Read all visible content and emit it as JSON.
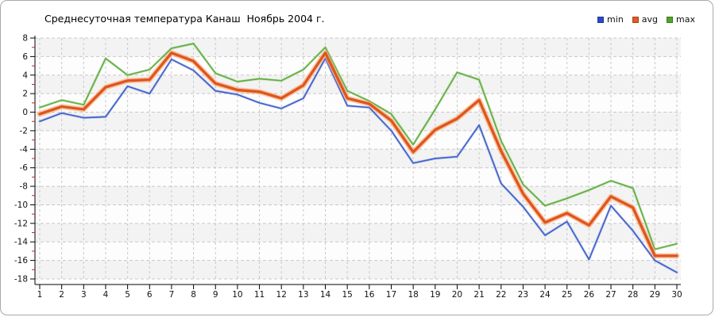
{
  "chart_data": {
    "type": "line",
    "title": "Среднесуточная температура Канаш  Ноябрь 2004 г.",
    "xlabel": "",
    "ylabel": "",
    "x": [
      1,
      2,
      3,
      4,
      5,
      6,
      7,
      8,
      9,
      10,
      11,
      12,
      13,
      14,
      15,
      16,
      17,
      18,
      19,
      20,
      21,
      22,
      23,
      24,
      25,
      26,
      27,
      28,
      29,
      30
    ],
    "x_tick_labels": [
      "1",
      "2",
      "3",
      "4",
      "5",
      "6",
      "7",
      "8",
      "9",
      "10",
      "11",
      "12",
      "13",
      "14",
      "15",
      "16",
      "17",
      "18",
      "19",
      "20",
      "21",
      "22",
      "23",
      "24",
      "25",
      "26",
      "27",
      "28",
      "29",
      "30"
    ],
    "ylim": [
      -18,
      8
    ],
    "y_tick_step": 2,
    "y_minor_tick_step": 1,
    "grid": "dashed",
    "background_bands": true,
    "legend_position": "top-right",
    "series": [
      {
        "name": "min",
        "color": "#2b49c4",
        "line_color": "#3f60ca",
        "halo_color": "rgba(130,155,225,0.35)",
        "line_width": 1.7,
        "values": [
          -1.0,
          -0.1,
          -0.6,
          -0.5,
          2.8,
          2.0,
          5.7,
          4.5,
          2.3,
          1.9,
          1.0,
          0.4,
          1.5,
          5.8,
          0.7,
          0.5,
          -2.0,
          -5.5,
          -5.0,
          -4.8,
          -1.4,
          -7.7,
          -10.2,
          -13.3,
          -11.8,
          -15.9,
          -10.1,
          -12.8,
          -16.0,
          -17.3
        ]
      },
      {
        "name": "avg",
        "color": "#e05a28",
        "line_color": "#e0551e",
        "halo_color": "rgba(245,166,108,0.55)",
        "line_width": 3.4,
        "values": [
          -0.2,
          0.6,
          0.3,
          2.7,
          3.4,
          3.5,
          6.4,
          5.5,
          3.1,
          2.4,
          2.2,
          1.5,
          2.9,
          6.4,
          1.5,
          0.9,
          -0.9,
          -4.3,
          -1.9,
          -0.7,
          1.3,
          -4.2,
          -8.8,
          -11.9,
          -10.9,
          -12.2,
          -9.1,
          -10.3,
          -15.5,
          -15.5
        ]
      },
      {
        "name": "max",
        "color": "#4fa32a",
        "line_color": "#5fae3f",
        "halo_color": "rgba(150,200,120,0.35)",
        "line_width": 1.7,
        "values": [
          0.5,
          1.3,
          0.8,
          5.8,
          4.0,
          4.6,
          6.9,
          7.4,
          4.2,
          3.3,
          3.6,
          3.4,
          4.6,
          7.0,
          2.3,
          1.2,
          -0.2,
          -3.5,
          0.3,
          4.3,
          3.5,
          -3.1,
          -7.8,
          -10.1,
          -9.3,
          -8.4,
          -7.4,
          -8.2,
          -14.8,
          -14.2
        ]
      }
    ],
    "colors": {
      "axis": "#000000",
      "major_grid": "#c8c8c8",
      "minor_tick": "#cc2222",
      "band_gray": "#f3f3f3",
      "band_white": "#fdfdfd",
      "tick_text": "#111111"
    }
  }
}
